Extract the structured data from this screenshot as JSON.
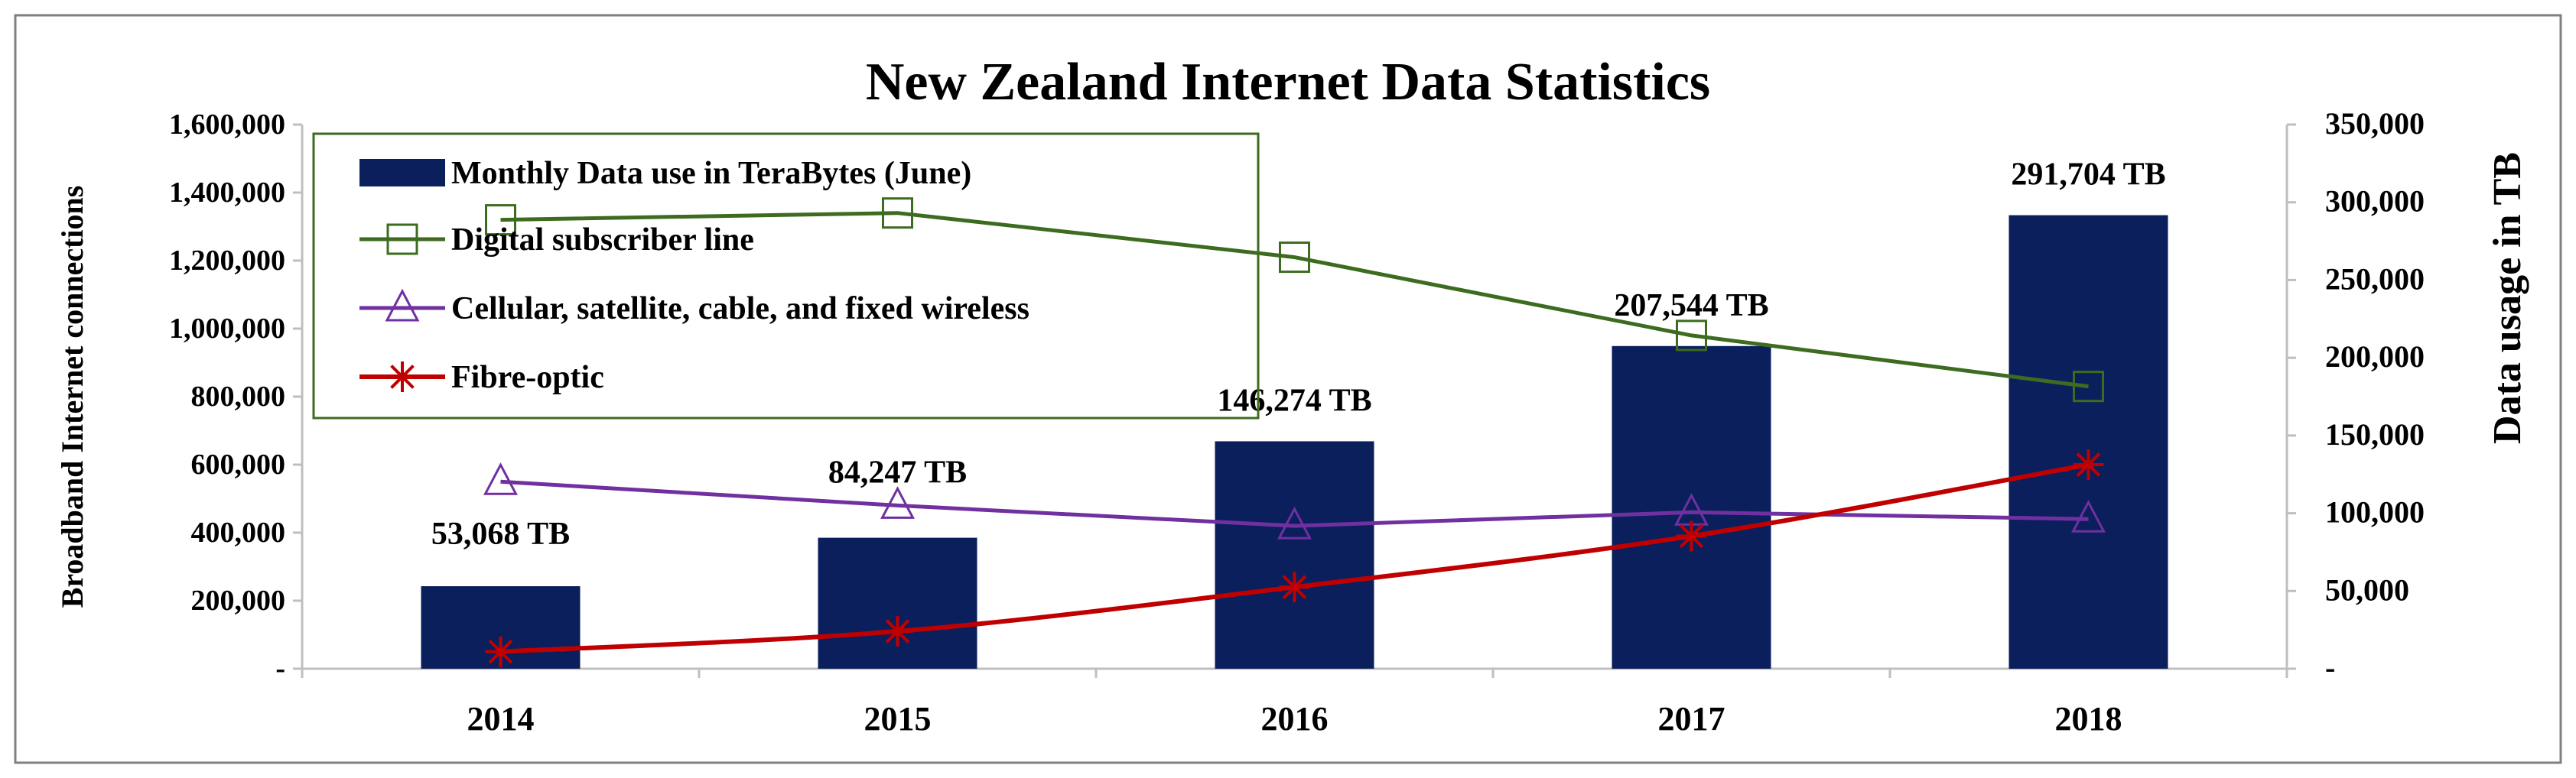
{
  "chart_data": {
    "type": "bar",
    "title": "New Zealand Internet Data Statistics",
    "ylabel": "Broadband Internet connections",
    "y2label": "Data usage in TB",
    "categories": [
      "2014",
      "2015",
      "2016",
      "2017",
      "2018"
    ],
    "ylim": [
      0,
      1600000
    ],
    "y2lim": [
      0,
      350000
    ],
    "y_ticks": [
      "-",
      "200,000",
      "400,000",
      "600,000",
      "800,000",
      "1,000,000",
      "1,200,000",
      "1,400,000",
      "1,600,000"
    ],
    "y2_ticks": [
      "-",
      "50,000",
      "100,000",
      "150,000",
      "200,000",
      "250,000",
      "300,000",
      "350,000"
    ],
    "grid": false,
    "legend_position": "top-left",
    "series": [
      {
        "name": "Monthly Data use in TeraBytes (June)",
        "kind": "bar",
        "axis": "right",
        "color": "#0b1f5c",
        "values": [
          53068,
          84247,
          146274,
          207544,
          291704
        ],
        "labels": [
          "53,068 TB",
          "84,247 TB",
          "146,274 TB",
          "207,544 TB",
          "291,704 TB"
        ]
      },
      {
        "name": "Digital subscriber line",
        "kind": "line",
        "axis": "left",
        "marker": "square",
        "color": "#3d6b1f",
        "values": [
          1320000,
          1340000,
          1210000,
          980000,
          830000
        ]
      },
      {
        "name": "Cellular, satellite, cable, and fixed wireless",
        "kind": "line",
        "axis": "left",
        "marker": "triangle",
        "color": "#7030a0",
        "values": [
          550000,
          480000,
          420000,
          460000,
          440000
        ]
      },
      {
        "name": "Fibre-optic",
        "kind": "line",
        "axis": "left",
        "marker": "star",
        "color": "#c00000",
        "values": [
          50000,
          110000,
          240000,
          390000,
          600000
        ]
      }
    ]
  }
}
